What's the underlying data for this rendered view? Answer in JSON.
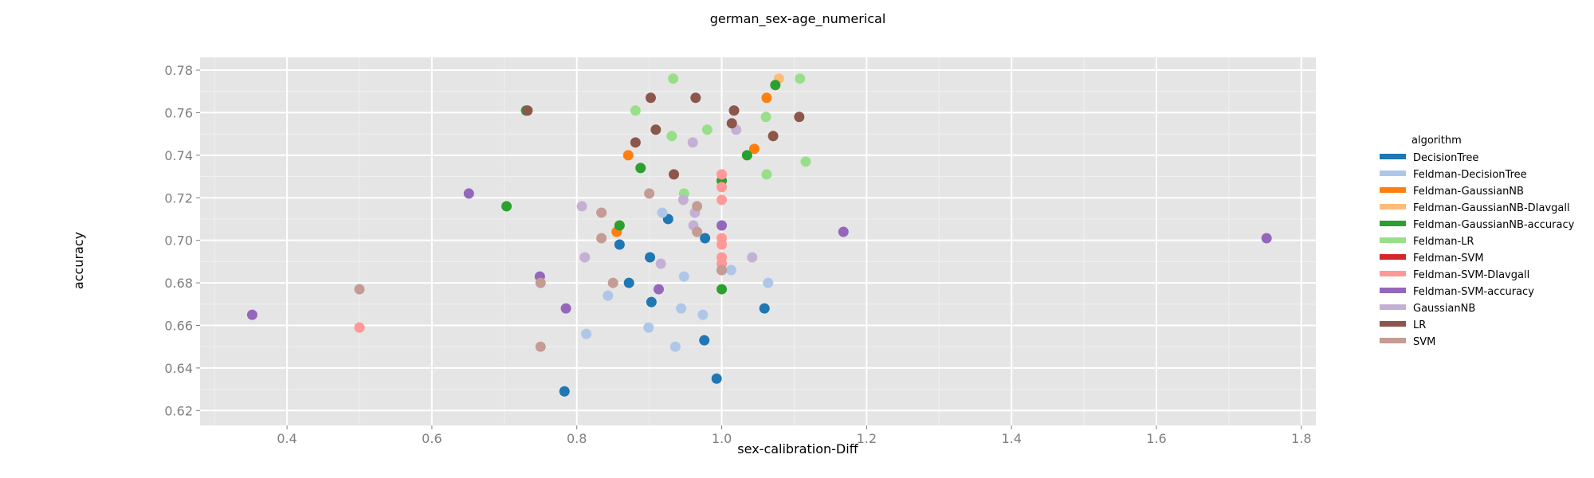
{
  "chart_data": {
    "type": "scatter",
    "title": "german_sex-age_numerical",
    "xlabel": "sex-calibration-Diff",
    "ylabel": "accuracy",
    "xlim": [
      0.28,
      1.82
    ],
    "ylim": [
      0.613,
      0.786
    ],
    "x_ticks": [
      "0.4",
      "0.6",
      "0.8",
      "1.0",
      "1.2",
      "1.4",
      "1.6",
      "1.8"
    ],
    "y_ticks": [
      "0.62",
      "0.64",
      "0.66",
      "0.68",
      "0.70",
      "0.72",
      "0.74",
      "0.76",
      "0.78"
    ],
    "grid": true,
    "legend_title": "algorithm",
    "legend_position": "right",
    "series": [
      {
        "name": "DecisionTree",
        "color": "#1f77b4",
        "points": [
          [
            0.783,
            0.629
          ],
          [
            0.993,
            0.635
          ],
          [
            0.976,
            0.653
          ],
          [
            0.903,
            0.671
          ],
          [
            0.872,
            0.68
          ],
          [
            1.059,
            0.668
          ],
          [
            0.859,
            0.698
          ],
          [
            0.901,
            0.692
          ],
          [
            0.977,
            0.701
          ],
          [
            0.926,
            0.71
          ]
        ]
      },
      {
        "name": "Feldman-DecisionTree",
        "color": "#aec7e8",
        "points": [
          [
            0.813,
            0.656
          ],
          [
            0.936,
            0.65
          ],
          [
            0.899,
            0.659
          ],
          [
            0.974,
            0.665
          ],
          [
            0.944,
            0.668
          ],
          [
            0.843,
            0.674
          ],
          [
            0.948,
            0.683
          ],
          [
            1.013,
            0.686
          ],
          [
            1.064,
            0.68
          ],
          [
            0.918,
            0.713
          ]
        ]
      },
      {
        "name": "Feldman-GaussianNB",
        "color": "#ff7f0e",
        "points": [
          [
            0.855,
            0.704
          ],
          [
            0.871,
            0.74
          ],
          [
            1.045,
            0.743
          ],
          [
            1.062,
            0.767
          ]
        ]
      },
      {
        "name": "Feldman-GaussianNB-DIavgall",
        "color": "#ffbb78",
        "points": [
          [
            1.079,
            0.776
          ]
        ]
      },
      {
        "name": "Feldman-GaussianNB-accuracy",
        "color": "#2ca02c",
        "points": [
          [
            0.703,
            0.716
          ],
          [
            0.859,
            0.707
          ],
          [
            0.888,
            0.734
          ],
          [
            1.0,
            0.677
          ],
          [
            1.0,
            0.728
          ],
          [
            1.035,
            0.74
          ],
          [
            1.074,
            0.773
          ],
          [
            0.73,
            0.761
          ]
        ]
      },
      {
        "name": "Feldman-LR",
        "color": "#98df8a",
        "points": [
          [
            0.933,
            0.776
          ],
          [
            0.881,
            0.761
          ],
          [
            0.931,
            0.749
          ],
          [
            0.98,
            0.752
          ],
          [
            0.948,
            0.722
          ],
          [
            1.062,
            0.731
          ],
          [
            1.061,
            0.758
          ],
          [
            1.108,
            0.776
          ],
          [
            1.116,
            0.737
          ]
        ]
      },
      {
        "name": "Feldman-SVM",
        "color": "#d62728",
        "points": []
      },
      {
        "name": "Feldman-SVM-DIavgall",
        "color": "#ff9896",
        "points": [
          [
            0.5,
            0.659
          ],
          [
            1.0,
            0.731
          ],
          [
            1.0,
            0.725
          ],
          [
            1.0,
            0.719
          ],
          [
            1.0,
            0.701
          ],
          [
            1.0,
            0.698
          ],
          [
            1.0,
            0.692
          ],
          [
            1.0,
            0.689
          ]
        ]
      },
      {
        "name": "Feldman-SVM-accuracy",
        "color": "#9467bd",
        "points": [
          [
            0.352,
            0.665
          ],
          [
            0.651,
            0.722
          ],
          [
            0.749,
            0.683
          ],
          [
            0.785,
            0.668
          ],
          [
            0.913,
            0.677
          ],
          [
            1.0,
            0.686
          ],
          [
            1.0,
            0.707
          ],
          [
            1.168,
            0.704
          ],
          [
            1.752,
            0.701
          ]
        ]
      },
      {
        "name": "GaussianNB",
        "color": "#c5b0d5",
        "points": [
          [
            0.807,
            0.716
          ],
          [
            0.811,
            0.692
          ],
          [
            0.916,
            0.689
          ],
          [
            0.947,
            0.719
          ],
          [
            0.961,
            0.707
          ],
          [
            0.963,
            0.713
          ],
          [
            0.96,
            0.746
          ],
          [
            1.02,
            0.752
          ],
          [
            1.042,
            0.692
          ]
        ]
      },
      {
        "name": "LR",
        "color": "#8c564b",
        "points": [
          [
            0.732,
            0.761
          ],
          [
            0.881,
            0.746
          ],
          [
            0.909,
            0.752
          ],
          [
            0.902,
            0.767
          ],
          [
            0.934,
            0.731
          ],
          [
            0.964,
            0.767
          ],
          [
            1.014,
            0.755
          ],
          [
            1.017,
            0.761
          ],
          [
            1.071,
            0.749
          ],
          [
            1.107,
            0.758
          ]
        ]
      },
      {
        "name": "SVM",
        "color": "#c49c94",
        "points": [
          [
            0.5,
            0.677
          ],
          [
            0.75,
            0.68
          ],
          [
            0.75,
            0.65
          ],
          [
            0.834,
            0.713
          ],
          [
            0.834,
            0.701
          ],
          [
            0.85,
            0.68
          ],
          [
            0.9,
            0.722
          ],
          [
            0.966,
            0.704
          ],
          [
            0.966,
            0.716
          ],
          [
            1.0,
            0.686
          ]
        ]
      }
    ]
  }
}
